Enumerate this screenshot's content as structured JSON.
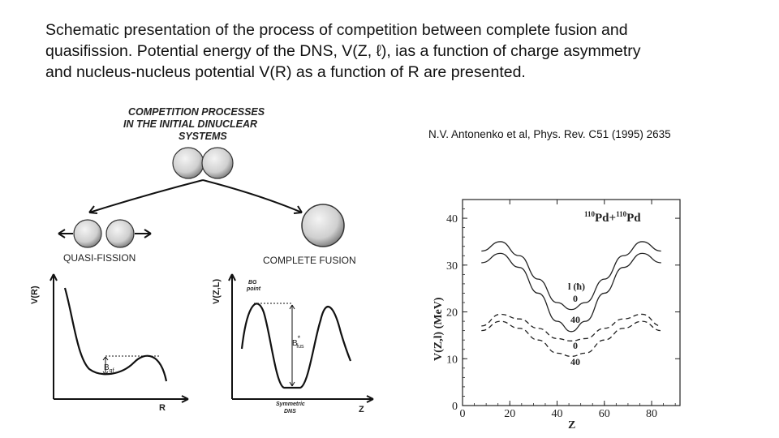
{
  "caption": {
    "line1": "Schematic presentation of the process of competition  between complete fusion and",
    "line2": "quasifission. Potential  energy of the DNS, V(Z, ℓ), ias a function of charge asymmetry",
    "line3": "and nucleus-nucleus potential V(R) as a function of R are presented."
  },
  "citation": "N.V. Antonenko et al, Phys. Rev. C51 (1995) 2635",
  "schematic": {
    "header_line1": "COMPETITION PROCESSES",
    "header_line2": "IN THE  INITIAL  DINUCLEAR",
    "header_line3": "SYSTEMS",
    "left_label": "QUASI-FISSION",
    "right_label": "COMPLETE FUSION",
    "vr_plot": {
      "ylabel": "V(R)",
      "xlabel": "R",
      "barrier": "B",
      "barrier_sub": "qf"
    },
    "vz_plot": {
      "ylabel": "V(Z,L)",
      "xlabel": "Z",
      "bg_line1": "BG",
      "bg_line2": "point",
      "barrier": "B",
      "barrier_sub": "fus",
      "barrier_sup": "*",
      "min_line1": "Symmetric",
      "min_line2": "DNS"
    }
  },
  "chart_data": {
    "type": "line",
    "title_parts": [
      "110",
      "Pd+",
      "110",
      "Pd"
    ],
    "xlabel": "Z",
    "ylabel": "V(Z,l)  (MeV)",
    "xlim": [
      0,
      92
    ],
    "ylim": [
      0,
      44
    ],
    "xticks": [
      0,
      20,
      40,
      60,
      80
    ],
    "yticks": [
      0,
      10,
      20,
      30,
      40
    ],
    "legend_title": "l (ħ)",
    "series": [
      {
        "name": "0",
        "style": "solid",
        "x": [
          8,
          16,
          24,
          32,
          40,
          46,
          52,
          60,
          68,
          76,
          84
        ],
        "y": [
          33,
          35,
          32,
          27,
          22,
          20.5,
          22,
          27,
          32,
          35,
          33
        ]
      },
      {
        "name": "40",
        "style": "solid",
        "x": [
          8,
          16,
          24,
          32,
          40,
          46,
          52,
          60,
          68,
          76,
          84
        ],
        "y": [
          30.5,
          32.5,
          29.5,
          24,
          18,
          15.8,
          18,
          24,
          29.5,
          32.5,
          30.5
        ]
      },
      {
        "name": "0",
        "style": "dashed",
        "x": [
          8,
          16,
          24,
          32,
          40,
          46,
          52,
          60,
          68,
          76,
          84
        ],
        "y": [
          17,
          19.5,
          18.5,
          16.5,
          14.3,
          13.8,
          14.3,
          16.5,
          18.5,
          19.5,
          17
        ]
      },
      {
        "name": "40",
        "style": "dashed",
        "x": [
          8,
          16,
          24,
          32,
          40,
          46,
          52,
          60,
          68,
          76,
          84
        ],
        "y": [
          16,
          18,
          16.5,
          14,
          11.2,
          10.5,
          11.2,
          14,
          16.5,
          18,
          16
        ]
      }
    ],
    "curve_labels": [
      "0",
      "40",
      "0",
      "40"
    ]
  }
}
